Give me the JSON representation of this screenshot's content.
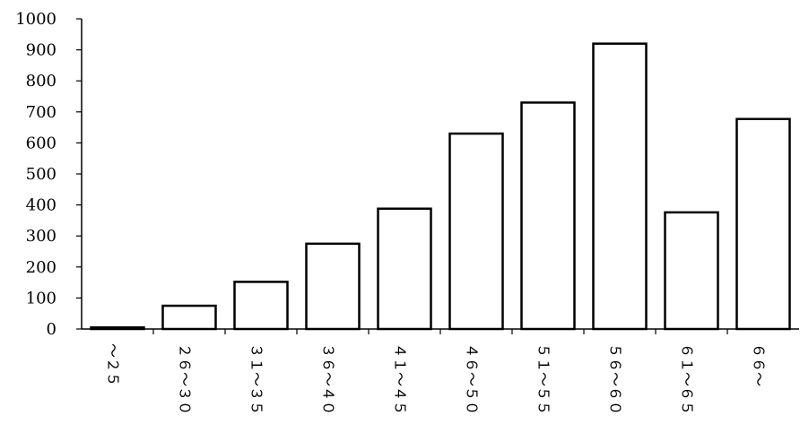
{
  "chart_data": {
    "type": "bar",
    "categories": [
      "～２５",
      "２６～３０",
      "３１～３５",
      "３６～４０",
      "４１～４５",
      "４６～５０",
      "５１～５５",
      "５６～６０",
      "６１～６５",
      "６６～"
    ],
    "values": [
      5,
      75,
      152,
      275,
      388,
      630,
      730,
      920,
      376,
      677
    ],
    "ylim": [
      0,
      1000
    ],
    "yticks": [
      0,
      100,
      200,
      300,
      400,
      500,
      600,
      700,
      800,
      900,
      1000
    ],
    "bar_fill": "#ffffff",
    "bar_stroke": "#000000",
    "grid": false,
    "legend": "none"
  }
}
